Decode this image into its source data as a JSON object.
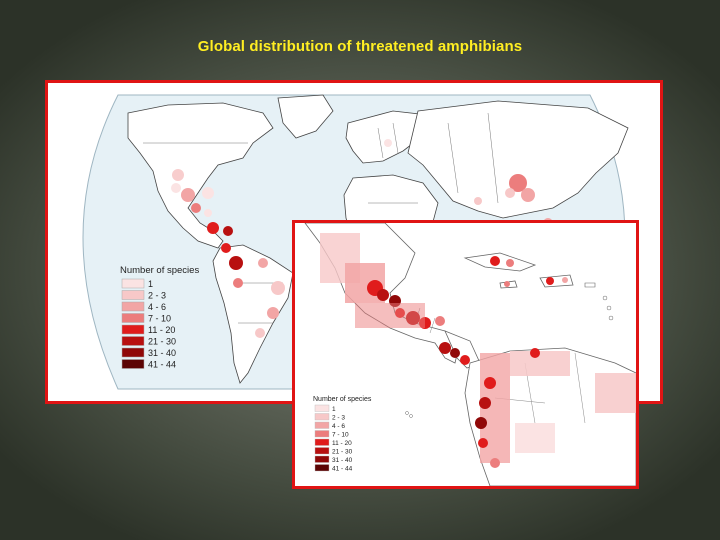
{
  "slide": {
    "title": "Global distribution of threatened amphibians",
    "frame_color": "#e01414",
    "title_color": "#ffee22"
  },
  "legend": {
    "title": "Number of species",
    "classes": [
      {
        "label": "1",
        "color": "#fbe3e3"
      },
      {
        "label": "2 - 3",
        "color": "#f7c8c8"
      },
      {
        "label": "4 - 6",
        "color": "#f2a5a5"
      },
      {
        "label": "7 - 10",
        "color": "#ec7d7d"
      },
      {
        "label": "11 - 20",
        "color": "#e01c1c"
      },
      {
        "label": "21 - 30",
        "color": "#b81010"
      },
      {
        "label": "31 - 40",
        "color": "#900808"
      },
      {
        "label": "41 - 44",
        "color": "#5c0404"
      }
    ]
  },
  "inset_legend": {
    "title": "Number of species",
    "labels": [
      "1",
      "2 - 3",
      "4 - 6",
      "7 - 10",
      "11 - 20",
      "21 - 30",
      "31 - 40",
      "41 - 44"
    ]
  }
}
